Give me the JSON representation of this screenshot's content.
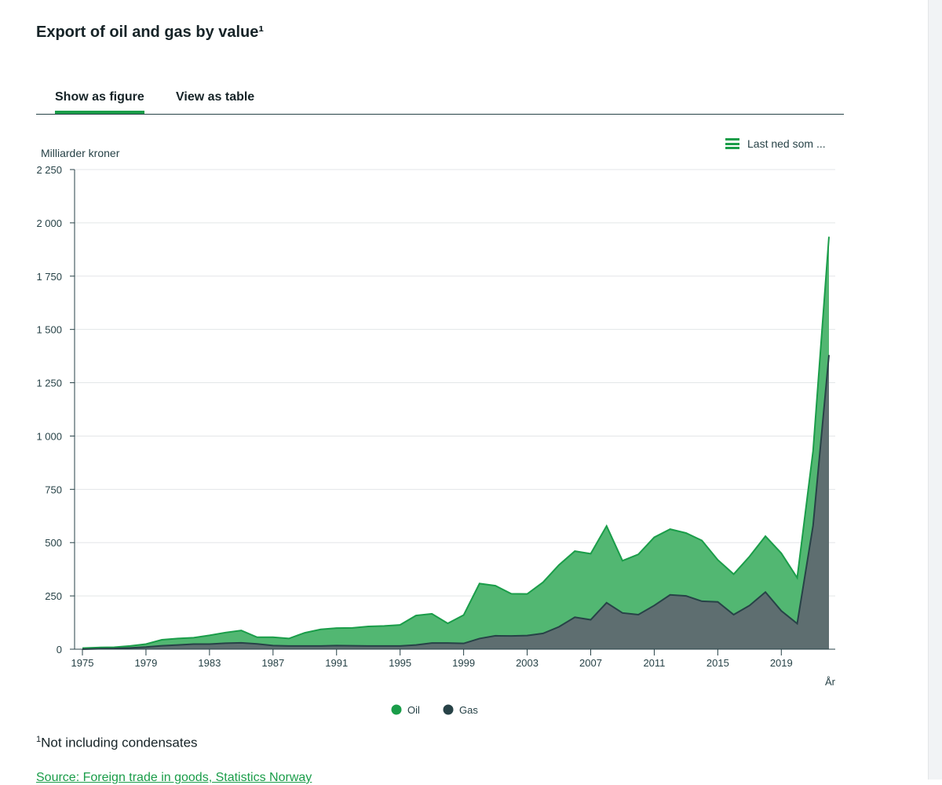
{
  "title": "Export of oil and gas by value¹",
  "tabs": [
    {
      "label": "Show as figure",
      "active": true
    },
    {
      "label": "View as table",
      "active": false
    }
  ],
  "download": {
    "label": "Last ned som ...",
    "icon": "menu-icon"
  },
  "footnote": {
    "marker": "1",
    "text": "Not including condensates"
  },
  "source": {
    "label": "Source: Foreign trade in goods, Statistics Norway"
  },
  "colors": {
    "accent": "#1a9d49",
    "oil": "#1a9d49",
    "gas": "#274247"
  },
  "chart_data": {
    "type": "area",
    "stacked": true,
    "ylabel": "Milliarder kroner",
    "xlabel": "År",
    "ylim": [
      0,
      2250
    ],
    "xlim": [
      1975,
      2022
    ],
    "y_ticks": [
      0,
      250,
      500,
      750,
      1000,
      1250,
      1500,
      1750,
      2000,
      2250
    ],
    "y_tick_labels": [
      "0",
      "250",
      "500",
      "750",
      "1 000",
      "1 250",
      "1 500",
      "1 750",
      "2 000",
      "2 250"
    ],
    "x_ticks": [
      1975,
      1979,
      1983,
      1987,
      1991,
      1995,
      1999,
      2003,
      2007,
      2011,
      2015,
      2019
    ],
    "grid": true,
    "legend_position": "bottom",
    "x": [
      1975,
      1976,
      1977,
      1978,
      1979,
      1980,
      1981,
      1982,
      1983,
      1984,
      1985,
      1986,
      1987,
      1988,
      1989,
      1990,
      1991,
      1992,
      1993,
      1994,
      1995,
      1996,
      1997,
      1998,
      1999,
      2000,
      2001,
      2002,
      2003,
      2004,
      2005,
      2006,
      2007,
      2008,
      2009,
      2010,
      2011,
      2012,
      2013,
      2014,
      2015,
      2016,
      2017,
      2018,
      2019,
      2020,
      2021,
      2022
    ],
    "series": [
      {
        "name": "Gas",
        "color": "#274247",
        "values": [
          0,
          2,
          3,
          6,
          10,
          16,
          20,
          24,
          24,
          28,
          30,
          25,
          17,
          15,
          15,
          15,
          17,
          16,
          15,
          15,
          15,
          20,
          29,
          29,
          27,
          50,
          63,
          62,
          64,
          74,
          105,
          150,
          138,
          218,
          170,
          162,
          205,
          255,
          250,
          225,
          222,
          162,
          205,
          268,
          180,
          120,
          580,
          1380
        ]
      },
      {
        "name": "Oil",
        "color": "#1a9d49",
        "values": [
          5,
          6,
          6,
          9,
          14,
          28,
          30,
          30,
          41,
          50,
          58,
          31,
          39,
          35,
          62,
          78,
          82,
          84,
          92,
          94,
          99,
          138,
          137,
          92,
          133,
          258,
          235,
          198,
          195,
          240,
          290,
          310,
          310,
          360,
          245,
          283,
          320,
          308,
          295,
          285,
          197,
          190,
          230,
          262,
          270,
          215,
          350,
          555
        ]
      }
    ]
  }
}
